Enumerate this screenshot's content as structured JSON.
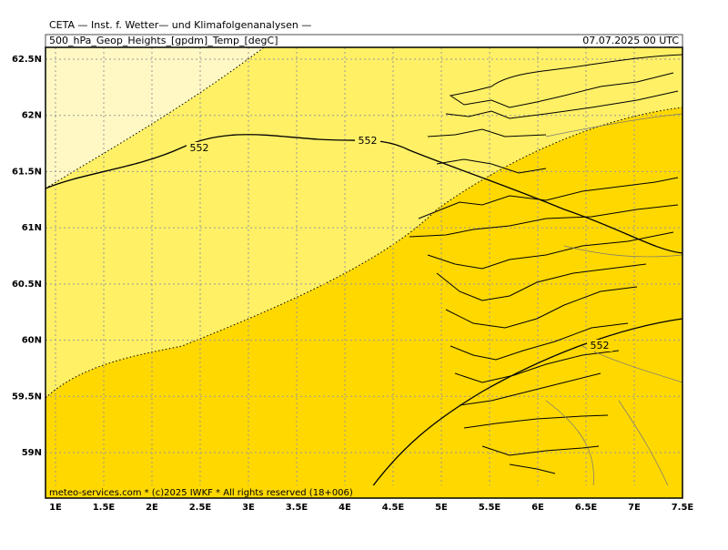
{
  "header": {
    "title": "CETA — Inst. f. Wetter— und Klimafolgenanalysen —",
    "subtitle": "500_hPa_Geop_Heights_[gpdm]_Temp_[degC]",
    "valid_time": "07.07.2025 00 UTC"
  },
  "footer": "meteo-services.com * (c)2025 IWKF * All rights reserved (18+006)",
  "map": {
    "lon_ticks": [
      {
        "value": 1,
        "label": "1E"
      },
      {
        "value": 1.5,
        "label": "1.5E"
      },
      {
        "value": 2,
        "label": "2E"
      },
      {
        "value": 2.5,
        "label": "2.5E"
      },
      {
        "value": 3,
        "label": "3E"
      },
      {
        "value": 3.5,
        "label": "3.5E"
      },
      {
        "value": 4,
        "label": "4E"
      },
      {
        "value": 4.5,
        "label": "4.5E"
      },
      {
        "value": 5,
        "label": "5E"
      },
      {
        "value": 5.5,
        "label": "5.5E"
      },
      {
        "value": 6,
        "label": "6E"
      },
      {
        "value": 6.5,
        "label": "6.5E"
      },
      {
        "value": 7,
        "label": "7E"
      },
      {
        "value": 7.5,
        "label": "7.5E"
      }
    ],
    "lat_ticks": [
      {
        "value": 62.5,
        "label": "62.5N"
      },
      {
        "value": 62,
        "label": "62N"
      },
      {
        "value": 61.5,
        "label": "61.5N"
      },
      {
        "value": 61,
        "label": "61N"
      },
      {
        "value": 60.5,
        "label": "60.5N"
      },
      {
        "value": 60,
        "label": "60N"
      },
      {
        "value": 59.5,
        "label": "59.5N"
      },
      {
        "value": 59,
        "label": "59N"
      }
    ],
    "contour_labels": [
      "552",
      "552",
      "552"
    ]
  }
}
